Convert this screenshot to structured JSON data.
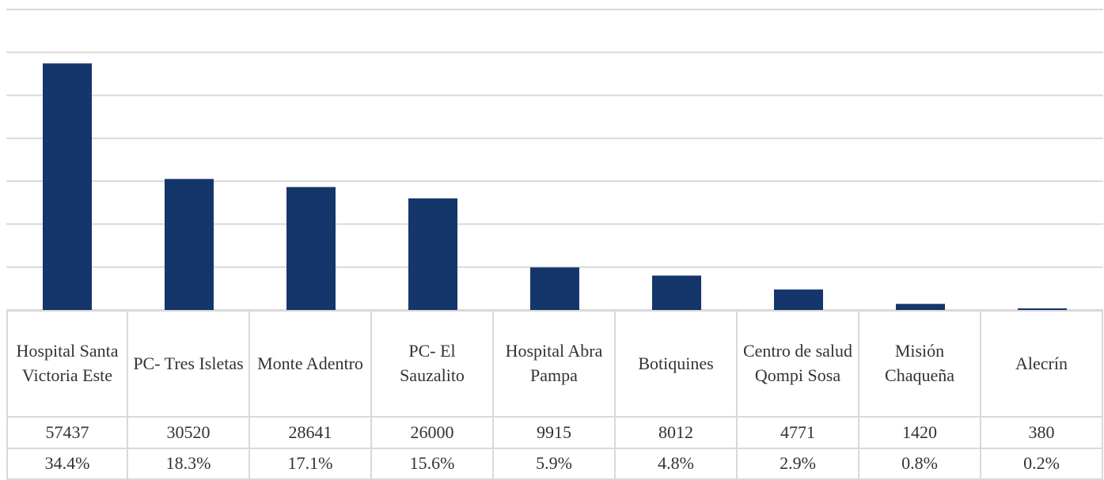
{
  "chart_data": {
    "type": "bar",
    "categories": [
      "Hospital Santa Victoria Este",
      "PC- Tres Isletas",
      "Monte Adentro",
      "PC- El Sauzalito",
      "Hospital Abra Pampa",
      "Botiquines",
      "Centro de salud Qompi Sosa",
      "Misión Chaqueña",
      "Alecrín"
    ],
    "values": [
      57437,
      30520,
      28641,
      26000,
      9915,
      8012,
      4771,
      1420,
      380
    ],
    "percentages": [
      "34.4%",
      "18.3%",
      "17.1%",
      "15.6%",
      "5.9%",
      "4.8%",
      "2.9%",
      "0.8%",
      "0.2%"
    ],
    "color": "#14366a",
    "ylim": [
      0,
      70000
    ],
    "yticks": [
      0,
      10000,
      20000,
      30000,
      40000,
      50000,
      60000,
      70000
    ],
    "grid": true
  }
}
